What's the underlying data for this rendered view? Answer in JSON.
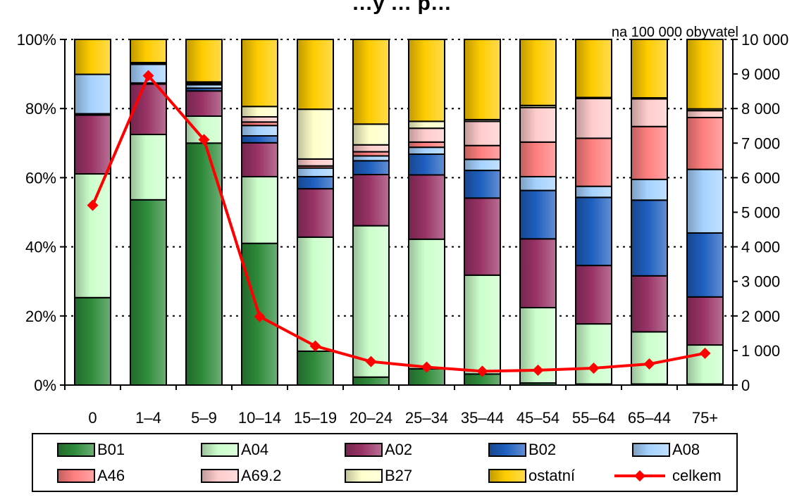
{
  "chart_data": {
    "type": "bar",
    "stacked": true,
    "title": "…y … p…",
    "unit_label": "na 100 000 obyvatel",
    "categories": [
      "0",
      "1–4",
      "5–9",
      "10–14",
      "15–19",
      "20–24",
      "25–34",
      "35–44",
      "45–54",
      "55–64",
      "65–44",
      "75+"
    ],
    "y_left": {
      "lim": [
        0,
        100
      ],
      "ticks": [
        0,
        20,
        40,
        60,
        80,
        100
      ],
      "tick_labels": [
        "0%",
        "20%",
        "40%",
        "60%",
        "80%",
        "100%"
      ]
    },
    "y_right": {
      "lim": [
        0,
        10000
      ],
      "ticks": [
        0,
        1000,
        2000,
        3000,
        4000,
        5000,
        6000,
        7000,
        8000,
        9000,
        10000
      ],
      "tick_labels": [
        "0",
        "1 000",
        "2 000",
        "3 000",
        "4 000",
        "5 000",
        "6 000",
        "7 000",
        "8 000",
        "9 000",
        "10 000"
      ]
    },
    "grid": "horizontal dotted",
    "legend_position": "bottom",
    "series": [
      {
        "name": "B01",
        "color": "#2e8b3a",
        "values": [
          25.3,
          53.6,
          70.0,
          41.0,
          9.8,
          2.3,
          4.7,
          3.2,
          0.6,
          0.3,
          0.3,
          0.3
        ]
      },
      {
        "name": "A04",
        "color": "#ccffcc",
        "values": [
          35.8,
          18.9,
          7.8,
          19.3,
          33.0,
          43.8,
          37.5,
          28.6,
          21.8,
          17.4,
          15.1,
          11.3
        ]
      },
      {
        "name": "A02",
        "color": "#993366",
        "values": [
          17.0,
          14.6,
          7.3,
          9.8,
          14.0,
          14.8,
          18.6,
          22.3,
          19.9,
          16.9,
          16.2,
          13.9
        ]
      },
      {
        "name": "B02",
        "color": "#1f5fbf",
        "values": [
          0.4,
          0.3,
          0.8,
          2.0,
          3.5,
          4.0,
          6.0,
          8.0,
          14.0,
          19.7,
          21.9,
          18.5
        ]
      },
      {
        "name": "A08",
        "color": "#a6d2ff",
        "values": [
          11.4,
          5.4,
          1.0,
          3.0,
          2.5,
          1.4,
          2.0,
          3.2,
          4.0,
          3.2,
          6.0,
          18.4
        ]
      },
      {
        "name": "A46",
        "color": "#ff7f7f",
        "values": [
          0.0,
          0.0,
          0.2,
          1.0,
          0.6,
          1.2,
          1.5,
          4.0,
          10.0,
          13.9,
          15.3,
          15.0
        ]
      },
      {
        "name": "A69.2",
        "color": "#ffcccc",
        "values": [
          0.0,
          0.2,
          0.4,
          1.5,
          2.0,
          2.0,
          4.0,
          7.0,
          10.0,
          11.5,
          8.0,
          2.0
        ]
      },
      {
        "name": "B27",
        "color": "#ffffcc",
        "values": [
          0.0,
          0.3,
          0.2,
          3.0,
          14.4,
          6.0,
          2.0,
          0.5,
          0.6,
          0.3,
          0.3,
          0.5
        ]
      },
      {
        "name": "ostatní",
        "color": "#ffcc00",
        "values": [
          10.1,
          6.7,
          12.3,
          19.4,
          20.2,
          24.5,
          23.7,
          23.2,
          19.1,
          16.8,
          16.9,
          20.1
        ]
      }
    ],
    "line": {
      "name": "celkem",
      "color": "#ff0000",
      "axis": "right",
      "values": [
        5200,
        8950,
        7100,
        1980,
        1130,
        680,
        520,
        400,
        430,
        490,
        610,
        920
      ]
    }
  }
}
